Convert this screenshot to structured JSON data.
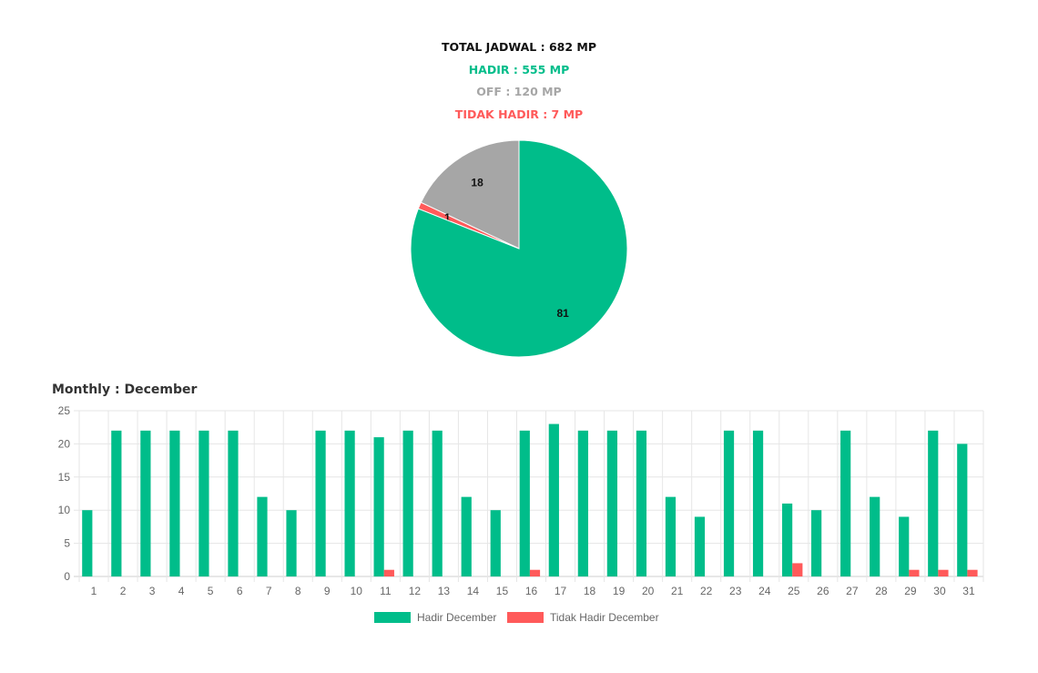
{
  "summary": {
    "total": "TOTAL JADWAL : 682 MP",
    "hadir": "HADIR : 555 MP",
    "off": "OFF : 120 MP",
    "tidak_hadir": "TIDAK HADIR : 7 MP"
  },
  "colors": {
    "total": "#111111",
    "hadir": "#00bd8a",
    "off": "#a6a6a6",
    "tidak_hadir": "#ff5a5a",
    "grid": "#e6e6e6",
    "axis_text": "#666666"
  },
  "monthly_title": "Monthly : December",
  "chart_data": [
    {
      "type": "pie",
      "title": "",
      "slices": [
        {
          "label": "OFF",
          "value": 18,
          "color": "#a6a6a6"
        },
        {
          "label": "TIDAK HADIR",
          "value": 1,
          "color": "#ff5a5a"
        },
        {
          "label": "HADIR",
          "value": 81,
          "color": "#00bd8a"
        }
      ]
    },
    {
      "type": "bar",
      "title": "Monthly : December",
      "xlabel": "",
      "ylabel": "",
      "ylim": [
        0,
        25
      ],
      "yticks": [
        0,
        5,
        10,
        15,
        20,
        25
      ],
      "grid": true,
      "legend": "bottom",
      "categories": [
        "1",
        "2",
        "3",
        "4",
        "5",
        "6",
        "7",
        "8",
        "9",
        "10",
        "11",
        "12",
        "13",
        "14",
        "15",
        "16",
        "17",
        "18",
        "19",
        "20",
        "21",
        "22",
        "23",
        "24",
        "25",
        "26",
        "27",
        "28",
        "29",
        "30",
        "31"
      ],
      "series": [
        {
          "name": "Hadir December",
          "color": "#00bd8a",
          "values": [
            10,
            22,
            22,
            22,
            22,
            22,
            12,
            10,
            22,
            22,
            21,
            22,
            22,
            12,
            10,
            22,
            23,
            22,
            22,
            22,
            12,
            9,
            22,
            22,
            11,
            10,
            22,
            12,
            9,
            22,
            20
          ]
        },
        {
          "name": "Tidak Hadir December",
          "color": "#ff5a5a",
          "values": [
            0,
            0,
            0,
            0,
            0,
            0,
            0,
            0,
            0,
            0,
            1,
            0,
            0,
            0,
            0,
            1,
            0,
            0,
            0,
            0,
            0,
            0,
            0,
            0,
            2,
            0,
            0,
            0,
            1,
            1,
            1
          ]
        }
      ]
    }
  ]
}
